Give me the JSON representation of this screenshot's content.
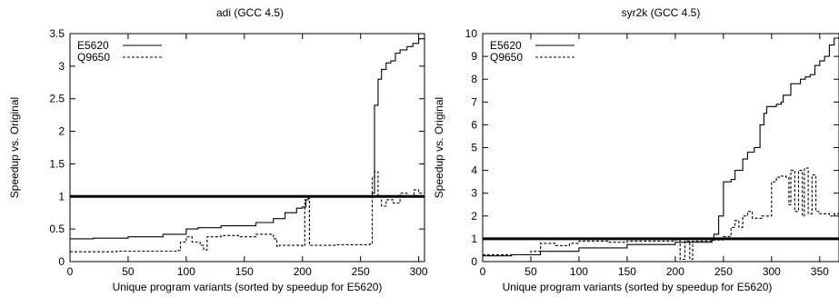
{
  "chart_data": [
    {
      "type": "line",
      "title": "adi (GCC 4.5)",
      "xlabel": "Unique program variants (sorted by speedup for E5620)",
      "ylabel": "Speedup vs. Original",
      "xlim": [
        0,
        305
      ],
      "ylim": [
        0,
        3.5
      ],
      "xticks": [
        0,
        50,
        100,
        150,
        200,
        250,
        300
      ],
      "yticks": [
        0,
        0.5,
        1,
        1.5,
        2,
        2.5,
        3,
        3.5
      ],
      "xtick_labels": [
        "0",
        "50",
        "100",
        "150",
        "200",
        "250",
        "300"
      ],
      "ytick_labels": [
        "0",
        "0.5",
        "1",
        "1.5",
        "2",
        "2.5",
        "3",
        "3.5"
      ],
      "legend_position": "top-left",
      "reference_line": 1,
      "series": [
        {
          "name": "E5620",
          "style": "solid",
          "points": [
            [
              0,
              0.35
            ],
            [
              20,
              0.36
            ],
            [
              50,
              0.38
            ],
            [
              80,
              0.42
            ],
            [
              100,
              0.5
            ],
            [
              110,
              0.52
            ],
            [
              130,
              0.55
            ],
            [
              160,
              0.6
            ],
            [
              175,
              0.66
            ],
            [
              185,
              0.75
            ],
            [
              195,
              0.82
            ],
            [
              200,
              0.84
            ],
            [
              203,
              0.95
            ],
            [
              205,
              1.0
            ],
            [
              258,
              1.0
            ],
            [
              260,
              1.05
            ],
            [
              262,
              2.4
            ],
            [
              265,
              2.8
            ],
            [
              268,
              2.95
            ],
            [
              272,
              3.05
            ],
            [
              276,
              3.08
            ],
            [
              280,
              3.2
            ],
            [
              284,
              3.25
            ],
            [
              290,
              3.3
            ],
            [
              295,
              3.35
            ],
            [
              300,
              3.42
            ],
            [
              305,
              3.45
            ]
          ]
        },
        {
          "name": "Q9650",
          "style": "dashed",
          "points": [
            [
              0,
              0.15
            ],
            [
              40,
              0.16
            ],
            [
              93,
              0.17
            ],
            [
              95,
              0.3
            ],
            [
              100,
              0.38
            ],
            [
              105,
              0.3
            ],
            [
              112,
              0.25
            ],
            [
              115,
              0.18
            ],
            [
              118,
              0.38
            ],
            [
              130,
              0.4
            ],
            [
              145,
              0.38
            ],
            [
              160,
              0.42
            ],
            [
              175,
              0.35
            ],
            [
              178,
              0.23
            ],
            [
              180,
              0.25
            ],
            [
              200,
              0.24
            ],
            [
              202,
              0.95
            ],
            [
              205,
              0.97
            ],
            [
              206,
              0.25
            ],
            [
              230,
              0.26
            ],
            [
              258,
              0.27
            ],
            [
              260,
              1.3
            ],
            [
              262,
              1.38
            ],
            [
              265,
              1.0
            ],
            [
              268,
              0.85
            ],
            [
              272,
              0.95
            ],
            [
              278,
              0.9
            ],
            [
              284,
              1.05
            ],
            [
              290,
              1.0
            ],
            [
              296,
              1.1
            ],
            [
              300,
              1.05
            ],
            [
              305,
              1.1
            ]
          ]
        }
      ]
    },
    {
      "type": "line",
      "title": "syr2k (GCC 4.5)",
      "xlabel": "Unique program variants (sorted by speedup for E5620)",
      "ylabel": "Speedup vs. Original",
      "xlim": [
        0,
        370
      ],
      "ylim": [
        0,
        10
      ],
      "xticks": [
        0,
        50,
        100,
        150,
        200,
        250,
        300,
        350
      ],
      "yticks": [
        0,
        1,
        2,
        3,
        4,
        5,
        6,
        7,
        8,
        9,
        10
      ],
      "xtick_labels": [
        "0",
        "50",
        "100",
        "150",
        "200",
        "250",
        "300",
        "350"
      ],
      "ytick_labels": [
        "0",
        "1",
        "2",
        "3",
        "4",
        "5",
        "6",
        "7",
        "8",
        "9",
        "10"
      ],
      "legend_position": "top-left",
      "reference_line": 1,
      "series": [
        {
          "name": "E5620",
          "style": "solid",
          "points": [
            [
              0,
              0.25
            ],
            [
              30,
              0.3
            ],
            [
              60,
              0.45
            ],
            [
              100,
              0.6
            ],
            [
              150,
              0.75
            ],
            [
              200,
              0.85
            ],
            [
              238,
              0.95
            ],
            [
              240,
              1.2
            ],
            [
              245,
              2.0
            ],
            [
              250,
              3.5
            ],
            [
              258,
              3.6
            ],
            [
              262,
              4.0
            ],
            [
              270,
              4.5
            ],
            [
              275,
              4.8
            ],
            [
              282,
              5.0
            ],
            [
              288,
              6.0
            ],
            [
              292,
              6.5
            ],
            [
              295,
              6.8
            ],
            [
              305,
              6.9
            ],
            [
              310,
              7.0
            ],
            [
              312,
              7.3
            ],
            [
              320,
              7.8
            ],
            [
              330,
              8.0
            ],
            [
              335,
              8.1
            ],
            [
              340,
              8.2
            ],
            [
              345,
              8.6
            ],
            [
              350,
              8.8
            ],
            [
              355,
              9.0
            ],
            [
              360,
              9.5
            ],
            [
              365,
              9.8
            ],
            [
              370,
              10.0
            ]
          ]
        },
        {
          "name": "Q9650",
          "style": "dashed",
          "points": [
            [
              0,
              0.3
            ],
            [
              50,
              0.45
            ],
            [
              60,
              0.8
            ],
            [
              75,
              0.7
            ],
            [
              90,
              0.8
            ],
            [
              100,
              0.9
            ],
            [
              130,
              0.85
            ],
            [
              150,
              0.9
            ],
            [
              200,
              0.95
            ],
            [
              205,
              0.1
            ],
            [
              210,
              0.9
            ],
            [
              215,
              0.1
            ],
            [
              218,
              0.9
            ],
            [
              240,
              0.95
            ],
            [
              250,
              1.1
            ],
            [
              258,
              1.5
            ],
            [
              262,
              1.8
            ],
            [
              266,
              1.5
            ],
            [
              270,
              2.0
            ],
            [
              275,
              2.2
            ],
            [
              280,
              1.9
            ],
            [
              290,
              2.0
            ],
            [
              300,
              3.5
            ],
            [
              305,
              3.7
            ],
            [
              310,
              3.75
            ],
            [
              315,
              3.7
            ],
            [
              318,
              2.5
            ],
            [
              320,
              4.0
            ],
            [
              324,
              2.2
            ],
            [
              328,
              4.0
            ],
            [
              332,
              2.0
            ],
            [
              334,
              4.1
            ],
            [
              338,
              2.1
            ],
            [
              342,
              3.8
            ],
            [
              346,
              2.2
            ],
            [
              350,
              2.1
            ],
            [
              360,
              2.0
            ],
            [
              365,
              2.1
            ],
            [
              370,
              2.0
            ]
          ]
        }
      ]
    }
  ]
}
